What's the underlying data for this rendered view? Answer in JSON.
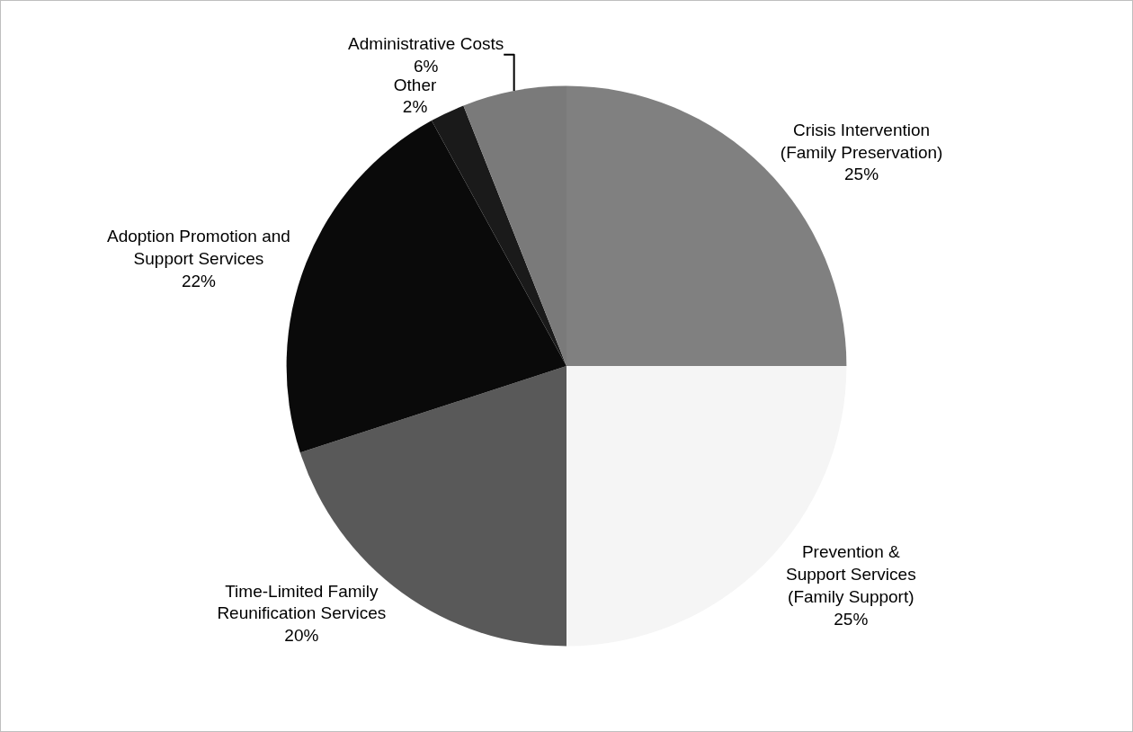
{
  "chart_data": {
    "type": "pie",
    "categories": [
      "Crisis Intervention (Family Preservation)",
      "Prevention & Support Services (Family Support)",
      "Time-Limited Family Reunification Services",
      "Adoption Promotion and Support Services",
      "Other",
      "Administrative Costs"
    ],
    "values": [
      25,
      25,
      20,
      22,
      2,
      6
    ],
    "colors": [
      "#808080",
      "#f5f5f5",
      "#595959",
      "#0a0a0a",
      "#1a1a1a",
      "#7a7a7a"
    ],
    "value_labels": [
      "25%",
      "25%",
      "20%",
      "22%",
      "2%",
      "6%"
    ],
    "legend": false
  }
}
